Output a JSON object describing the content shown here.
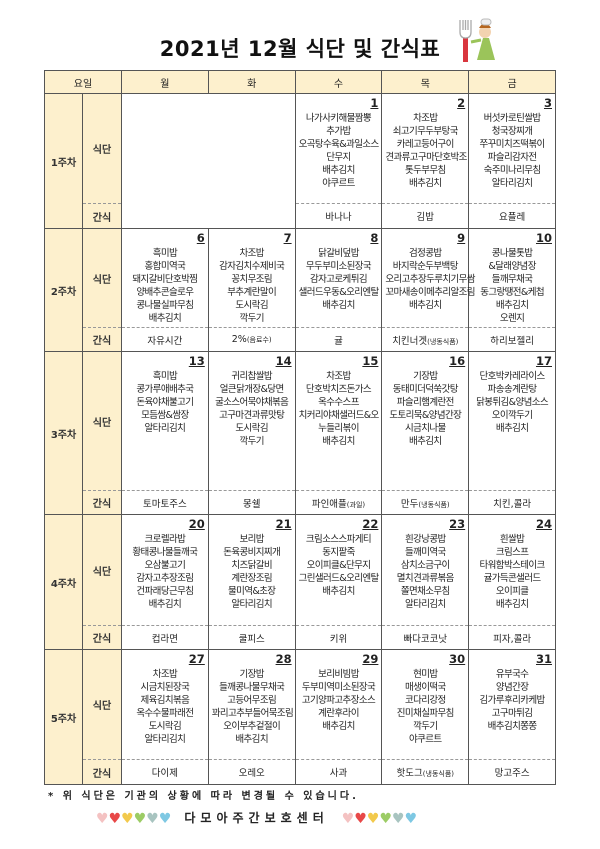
{
  "title": "2021년 12월 식단 및 간식표",
  "header": {
    "yoil": "요일",
    "days": [
      "월",
      "화",
      "수",
      "목",
      "금"
    ]
  },
  "labels": {
    "menu": "식단",
    "snack": "간식"
  },
  "weeks": [
    {
      "name": "1주차",
      "days": [
        null,
        null,
        {
          "date": "1",
          "menu": [
            "나가사키해물짬뽕",
            "추가밥",
            "오곡탕수육&과일소스",
            "단무지",
            "배추김치",
            "야쿠르트"
          ],
          "snack": "바나나"
        },
        {
          "date": "2",
          "menu": [
            "차조밥",
            "쇠고기무두부탕국",
            "카레고등어구이",
            "견과류고구마단호박조",
            "톳두부무침",
            "배추김치"
          ],
          "snack": "김밥"
        },
        {
          "date": "3",
          "menu": [
            "버섯카로틴쌀밥",
            "청국장찌개",
            "쭈꾸미치즈떡볶이",
            "파슬리감자전",
            "숙주미나리무침",
            "알타리김치"
          ],
          "snack": "요플레"
        }
      ]
    },
    {
      "name": "2주차",
      "days": [
        {
          "date": "6",
          "menu": [
            "흑미밥",
            "홍합미역국",
            "돼지갈비단호박찜",
            "양배추콘슬로우",
            "콩나물실파무침",
            "배추김치"
          ],
          "snack": "자유시간"
        },
        {
          "date": "7",
          "menu": [
            "차조밥",
            "감자김치수제비국",
            "꽁치무조림",
            "부추계란말이",
            "도시락김",
            "깍두기"
          ],
          "snack": "2%",
          "snack_note": "(음료수)"
        },
        {
          "date": "8",
          "menu": [
            "닭갈비덮밥",
            "무두부미소된장국",
            "감자고로케튀김",
            "샐러드우동&오리엔탈",
            "배추김치"
          ],
          "snack": "귤"
        },
        {
          "date": "9",
          "menu": [
            "검정콩밥",
            "바지락순두부백탕",
            "오리고추장두루치기무쌈",
            "꼬마새송이메추리알조림",
            "배추김치"
          ],
          "snack": "치킨너겟",
          "snack_note": "(냉동식품)"
        },
        {
          "date": "10",
          "menu": [
            "콩나물톳밥",
            "&달래양념장",
            "들깨무채국",
            "동그랑땡전&케첩",
            "배추김치",
            "오렌지"
          ],
          "snack": "하리보젤리"
        }
      ]
    },
    {
      "name": "3주차",
      "days": [
        {
          "date": "13",
          "menu": [
            "흑미밥",
            "콩가루애배추국",
            "돈육야채불고기",
            "모듬쌈&쌈장",
            "알타리김치"
          ],
          "snack": "토마토주스"
        },
        {
          "date": "14",
          "menu": [
            "귀리찹쌀밥",
            "얼큰닭개장&당면",
            "굴소스어묵야채볶음",
            "고구마견과류맛탕",
            "도시락김",
            "깍두기"
          ],
          "snack": "몽쉘"
        },
        {
          "date": "15",
          "menu": [
            "차조밥",
            "단호박치즈돈가스",
            "옥수수스프",
            "치커리야채샐러드&오",
            "누들리볶이",
            "배추김치"
          ],
          "snack": "파인애플",
          "snack_note": "(과일)"
        },
        {
          "date": "16",
          "menu": [
            "기장밥",
            "동태미더덕쑥갓탕",
            "파슬리햄계란전",
            "도토리묵&양념간장",
            "시금치나물",
            "배추김치"
          ],
          "snack": "만두",
          "snack_note": "(냉동식품)"
        },
        {
          "date": "17",
          "menu": [
            "단호박카레라이스",
            "파송송계란탕",
            "닭봉튀김&양념소스",
            "오이깍두기",
            "배추김치"
          ],
          "snack": "치킨,콜라"
        }
      ]
    },
    {
      "name": "4주차",
      "days": [
        {
          "date": "20",
          "menu": [
            "크로렐라밥",
            "황태콩나물들깨국",
            "오삼불고기",
            "감자고추장조림",
            "건파래당근무침",
            "배추김치"
          ],
          "snack": "컵라면"
        },
        {
          "date": "21",
          "menu": [
            "보리밥",
            "돈육콩비지찌개",
            "치즈닭갈비",
            "계란장조림",
            "물미역&초장",
            "알타리김치"
          ],
          "snack": "쿨피스"
        },
        {
          "date": "22",
          "menu": [
            "크림소스스파게티",
            "동지팥죽",
            "오이피클&단무지",
            "그린샐러드&오리엔탈",
            "배추김치"
          ],
          "snack": "키위"
        },
        {
          "date": "23",
          "menu": [
            "흰강낭콩밥",
            "들깨미역국",
            "삼치소금구이",
            "멸치견과류볶음",
            "쫄면채소무침",
            "알타리김치"
          ],
          "snack": "빠다코코낫"
        },
        {
          "date": "24",
          "menu": [
            "흰쌀밥",
            "크림스프",
            "타워함박스테이크",
            "귤가득콘샐러드",
            "오이피클",
            "배추김치"
          ],
          "snack": "피자,콜라"
        }
      ]
    },
    {
      "name": "5주차",
      "days": [
        {
          "date": "27",
          "menu": [
            "차조밥",
            "시금치된장국",
            "제육김치볶음",
            "옥수수물파래전",
            "도시락김",
            "알타리김치"
          ],
          "snack": "다이제"
        },
        {
          "date": "28",
          "menu": [
            "기장밥",
            "들깨콩나물무채국",
            "고등어무조림",
            "꽈리고추부들어묵조림",
            "오이부추겉절이",
            "배추김치"
          ],
          "snack": "오레오"
        },
        {
          "date": "29",
          "menu": [
            "보리비빔밥",
            "두부미역미소된장국",
            "고기양파고추장소스",
            "계란후라이",
            "배추김치"
          ],
          "snack": "사과"
        },
        {
          "date": "30",
          "menu": [
            "현미밥",
            "매생이떡국",
            "코다리강정",
            "진미채실파무침",
            "깍두기",
            "야쿠르트"
          ],
          "snack": "핫도그",
          "snack_note": "(냉동식품)"
        },
        {
          "date": "31",
          "menu": [
            "유부국수",
            "양념간장",
            "김가루후리카케밥",
            "고구마튀김",
            "배추김치쫑쫑"
          ],
          "snack": "망고주스"
        }
      ]
    }
  ],
  "note": "* 위 식단은 기관의 상황에 따라 변경될 수 있습니다.",
  "footer": {
    "center": "다모아주간보호센터",
    "heart_colors": [
      "#f4c2c2",
      "#e84848",
      "#f2c94c",
      "#9ccc65",
      "#a8c4c0",
      "#7ec8e3"
    ]
  },
  "colors": {
    "header_bg": "#fdf0cd",
    "border": "#555555"
  }
}
